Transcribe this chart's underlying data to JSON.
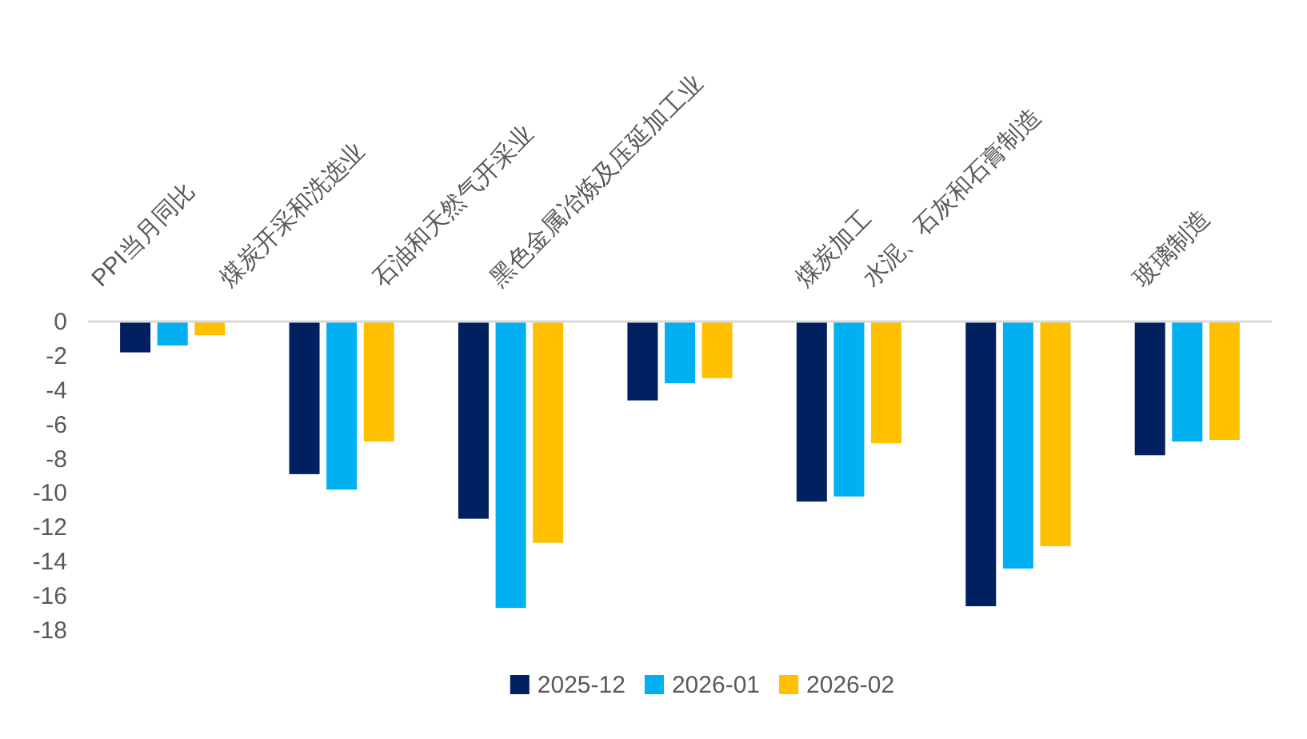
{
  "chart_data": {
    "type": "bar",
    "categories": [
      "PPI当月同比",
      "煤炭开采和洗选业",
      "石油和天然气开采业",
      "黑色金属冶炼及压延加工业",
      "煤炭加工",
      "水泥、石灰和石膏制造",
      "玻璃制造"
    ],
    "series": [
      {
        "name": "2025-12",
        "color": "#002060",
        "values": [
          -1.8,
          -8.9,
          -11.5,
          -4.6,
          -10.5,
          -16.6,
          -7.8
        ]
      },
      {
        "name": "2026-01",
        "color": "#00b0f0",
        "values": [
          -1.4,
          -9.8,
          -16.7,
          -3.6,
          -10.2,
          -14.4,
          -7.0
        ]
      },
      {
        "name": "2026-02",
        "color": "#ffc000",
        "values": [
          -0.8,
          -7.0,
          -12.9,
          -3.3,
          -7.1,
          -13.1,
          -6.9
        ]
      }
    ],
    "ylim": [
      -18,
      0
    ],
    "yticks": [
      0,
      -2,
      -4,
      -6,
      -8,
      -10,
      -12,
      -14,
      -16,
      -18
    ],
    "legend": "bottom"
  }
}
